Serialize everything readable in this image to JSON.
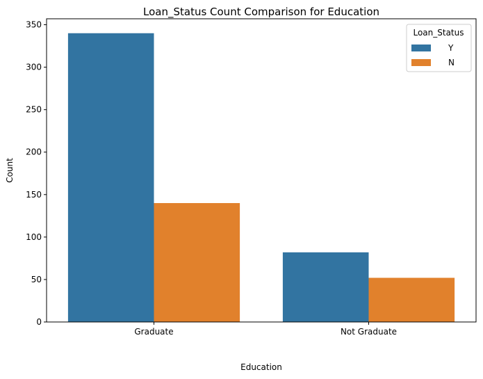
{
  "chart_data": {
    "type": "bar",
    "title": "Loan_Status Count Comparison for Education",
    "xlabel": "Education",
    "ylabel": "Count",
    "categories": [
      "Graduate",
      "Not Graduate"
    ],
    "series": [
      {
        "name": "Y",
        "values": [
          340,
          82
        ],
        "color": "#3274a1"
      },
      {
        "name": "N",
        "values": [
          140,
          52
        ],
        "color": "#e1812c"
      }
    ],
    "ylim": [
      0,
      357
    ],
    "yticks": [
      0,
      50,
      100,
      150,
      200,
      250,
      300,
      350
    ],
    "legend": {
      "title": "Loan_Status",
      "position": "top-right"
    },
    "grid": false
  }
}
